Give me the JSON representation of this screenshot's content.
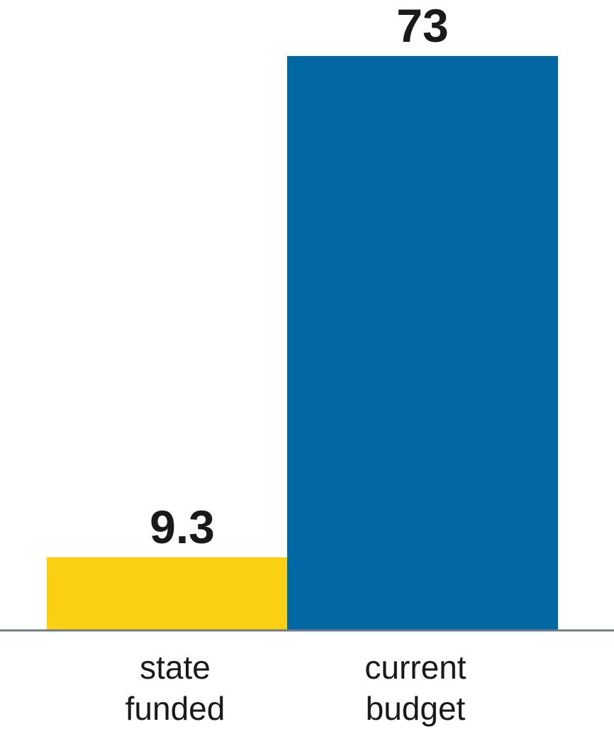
{
  "chart_data": {
    "type": "bar",
    "categories": [
      [
        "state",
        "funded"
      ],
      [
        "current",
        "budget"
      ]
    ],
    "values": [
      9.3,
      73
    ],
    "value_labels": [
      "9.3",
      "73"
    ],
    "colors": [
      "#FCD012",
      "#0268A4"
    ],
    "baseline_color": "#6E7B86",
    "ylim": [
      0,
      73
    ],
    "title": "",
    "xlabel": "",
    "ylabel": "",
    "grid": false,
    "legend": "none"
  }
}
